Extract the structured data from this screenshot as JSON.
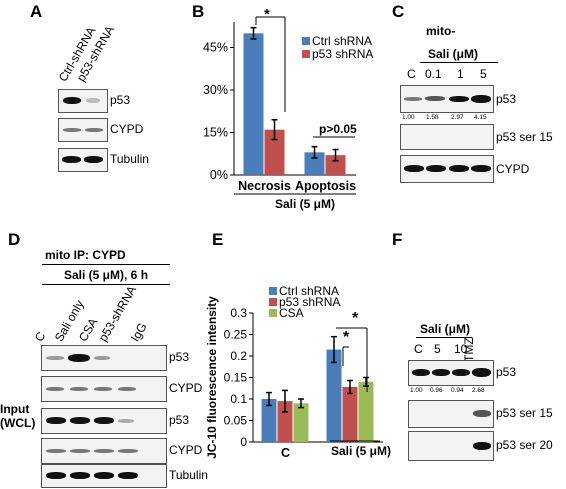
{
  "panels": {
    "A": {
      "letter": "A",
      "lanes": [
        "Ctrl-shRNA",
        "p53-shRNA"
      ],
      "blots": [
        "p53",
        "CYPD",
        "Tubulin"
      ]
    },
    "B": {
      "letter": "B",
      "group_label": "Sali (5 μM)",
      "significance": "*",
      "pvalue": "p>0.05"
    },
    "C": {
      "letter": "C",
      "header_top": "mito-",
      "header": "Sali (μM)",
      "lanes": [
        "C",
        "0.1",
        "1",
        "5"
      ],
      "quant": [
        "1.00",
        "1.58",
        "2.97",
        "4.15"
      ],
      "blots": [
        "p53",
        "p53 ser 15",
        "CYPD"
      ]
    },
    "D": {
      "letter": "D",
      "header1": "mito IP: CYPD",
      "header2": "Sali (5 μM), 6 h",
      "lanes": [
        "C",
        "Sali only",
        "CSA",
        "p53-shRNA",
        "IgG"
      ],
      "input_label": "Input",
      "wcl_label": "(WCL)",
      "blots": [
        "p53",
        "CYPD",
        "p53",
        "CYPD",
        "Tubulin"
      ]
    },
    "E": {
      "letter": "E",
      "significance": [
        "*",
        "*"
      ],
      "group_label": "Sali (5 μM)"
    },
    "F": {
      "letter": "F",
      "header": "Sali (μM)",
      "lanes": [
        "C",
        "5",
        "10",
        "TMZ"
      ],
      "quant": [
        "1.00",
        "0.96",
        "0.94",
        "2.68"
      ],
      "blots": [
        "p53",
        "p53 ser 15",
        "p53 ser 20"
      ]
    }
  },
  "colors": {
    "ctrl": "#4a7ebb",
    "p53sh": "#c0504d",
    "csa": "#9bbb59"
  },
  "chart_data": [
    {
      "panel": "B",
      "type": "bar",
      "categories": [
        "Necrosis",
        "Apoptosis"
      ],
      "series": [
        {
          "name": "Ctrl shRNA",
          "values": [
            50,
            8
          ],
          "errors": [
            2,
            2
          ]
        },
        {
          "name": "p53 shRNA",
          "values": [
            16,
            7
          ],
          "errors": [
            3.5,
            2
          ]
        }
      ],
      "yticks": [
        "0%",
        "15%",
        "30%",
        "45%"
      ],
      "ylim": [
        0,
        54
      ],
      "title": "",
      "xlabel": "",
      "ylabel": ""
    },
    {
      "panel": "E",
      "type": "bar",
      "categories": [
        "C",
        "Sali (5 μM)"
      ],
      "series": [
        {
          "name": "Ctrl shRNA",
          "values": [
            0.1,
            0.215
          ],
          "errors": [
            0.015,
            0.03
          ]
        },
        {
          "name": "p53 shRNA",
          "values": [
            0.095,
            0.128
          ],
          "errors": [
            0.025,
            0.015
          ]
        },
        {
          "name": "CSA",
          "values": [
            0.09,
            0.14
          ],
          "errors": [
            0.01,
            0.01
          ]
        }
      ],
      "yticks": [
        "0",
        "0.05",
        "0.1",
        "0.15",
        "0.2",
        "0.25",
        "0.3"
      ],
      "ylim": [
        0,
        0.3
      ],
      "title": "",
      "xlabel": "",
      "ylabel": "JC-10 fluorescence intensity"
    }
  ]
}
